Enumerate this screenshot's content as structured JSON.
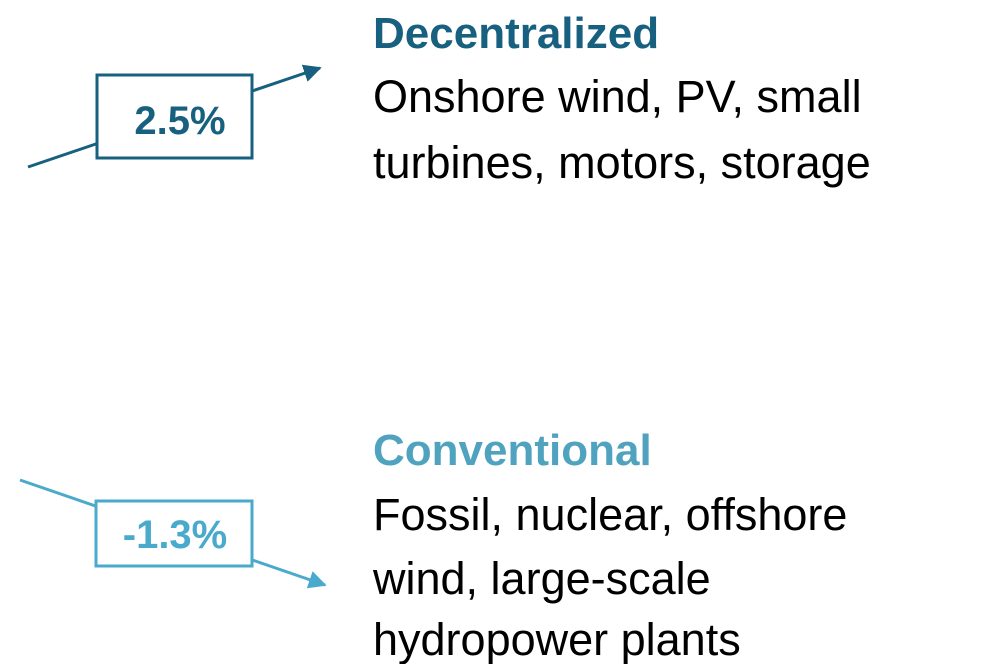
{
  "items": [
    {
      "rate": "2.5%",
      "title": "Decentralized",
      "description": [
        "Onshore wind, PV, small",
        "turbines, motors, storage"
      ]
    },
    {
      "rate": "-1.3%",
      "title": "Conventional",
      "description": [
        "Fossil, nuclear, offshore",
        "wind, large-scale",
        "hydropower plants"
      ]
    }
  ]
}
